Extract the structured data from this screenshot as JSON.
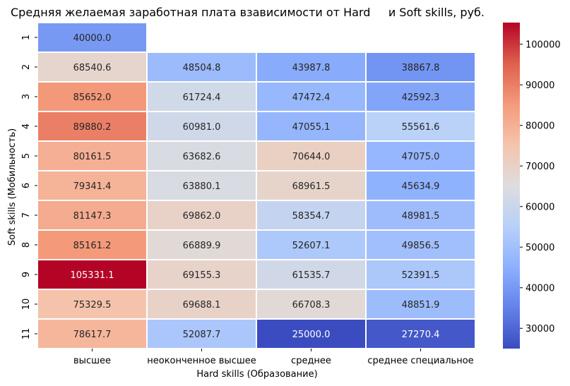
{
  "chart_data": {
    "type": "heatmap",
    "title": "Средняя желаемая заработная плата взависимости от Hard     и Soft skills, руб.",
    "xlabel": "Hard skills (Образование)",
    "ylabel": "Soft skills (Мобильность)",
    "columns": [
      "высшее",
      "неоконченное высшее",
      "среднее",
      "среднее специальное"
    ],
    "rows": [
      "1",
      "2",
      "3",
      "4",
      "5",
      "6",
      "7",
      "8",
      "9",
      "10",
      "11"
    ],
    "values": [
      [
        40000.0,
        null,
        null,
        null
      ],
      [
        68540.6,
        48504.8,
        43987.8,
        38867.8
      ],
      [
        85652.0,
        61724.4,
        47472.4,
        42592.3
      ],
      [
        89880.2,
        60981.0,
        47055.1,
        55561.6
      ],
      [
        80161.5,
        63682.6,
        70644.0,
        47075.0
      ],
      [
        79341.4,
        63880.1,
        68961.5,
        45634.9
      ],
      [
        81147.3,
        69862.0,
        58354.7,
        48981.5
      ],
      [
        85161.2,
        66889.9,
        52607.1,
        49856.5
      ],
      [
        105331.1,
        69155.3,
        61535.7,
        52391.5
      ],
      [
        75329.5,
        69688.1,
        66708.3,
        48851.9
      ],
      [
        78617.7,
        52087.7,
        25000.0,
        27270.4
      ]
    ],
    "colorbar": {
      "colormap": "coolwarm",
      "vmin": 25000.0,
      "vmax": 105331.1,
      "ticks": [
        30000,
        40000,
        50000,
        60000,
        70000,
        80000,
        90000,
        100000
      ]
    },
    "grid": false
  }
}
